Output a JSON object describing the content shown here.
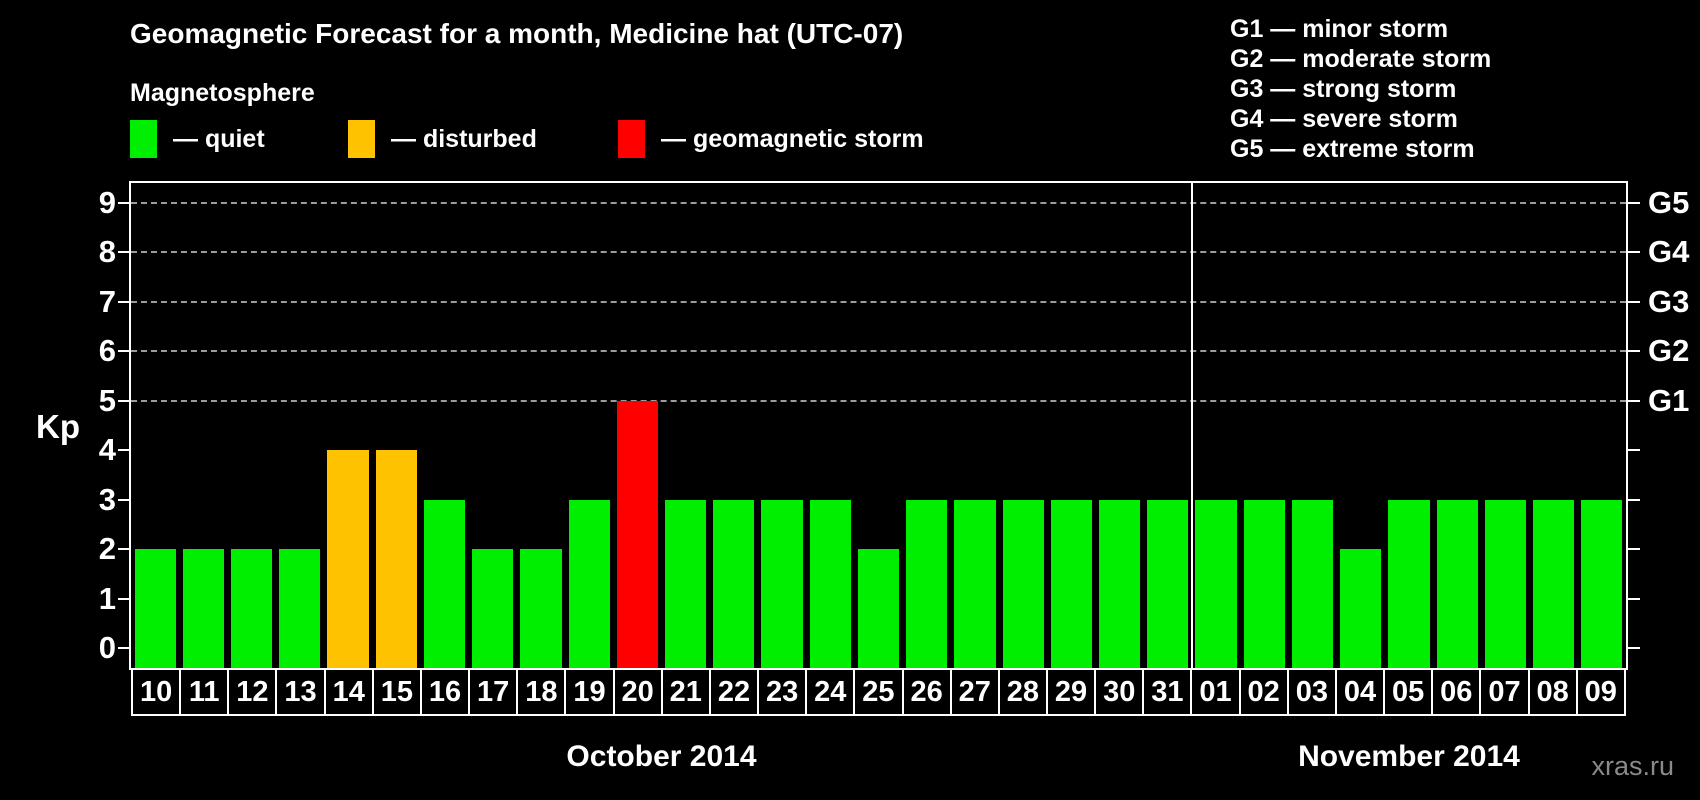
{
  "title": "Geomagnetic Forecast for a month, Medicine hat (UTC-07)",
  "subtitle": "Magnetosphere",
  "legend": {
    "quiet": {
      "label": "— quiet",
      "color": "#00ee00"
    },
    "disturbed": {
      "label": "— disturbed",
      "color": "#ffc200"
    },
    "storm": {
      "label": "— geomagnetic storm",
      "color": "#ff0000"
    }
  },
  "g_legend": {
    "lines": [
      "G1 — minor storm",
      "G2 — moderate storm",
      "G3 — strong storm",
      "G4 — severe storm",
      "G5 — extreme storm"
    ]
  },
  "axis": {
    "kp_label": "Kp",
    "left_ticks": [
      9,
      8,
      7,
      6,
      5,
      4,
      3,
      2,
      1,
      0
    ],
    "right_labels": [
      {
        "kp": 9,
        "label": "G5"
      },
      {
        "kp": 8,
        "label": "G4"
      },
      {
        "kp": 7,
        "label": "G3"
      },
      {
        "kp": 6,
        "label": "G2"
      },
      {
        "kp": 5,
        "label": "G1"
      }
    ]
  },
  "months": [
    {
      "label": "October 2014",
      "days": 22
    },
    {
      "label": "November 2014",
      "days": 9
    }
  ],
  "watermark": "xras.ru",
  "chart_data": {
    "type": "bar",
    "title": "Geomagnetic Forecast for a month, Medicine hat (UTC-07)",
    "xlabel": "",
    "ylabel": "Kp",
    "ylim": [
      0,
      9
    ],
    "grid": "dashed horizontal lines at Kp 5-9 (G1-G5 levels)",
    "legend_position": "top",
    "categories": [
      "10",
      "11",
      "12",
      "13",
      "14",
      "15",
      "16",
      "17",
      "18",
      "19",
      "20",
      "21",
      "22",
      "23",
      "24",
      "25",
      "26",
      "27",
      "28",
      "29",
      "30",
      "31",
      "01",
      "02",
      "03",
      "04",
      "05",
      "06",
      "07",
      "08",
      "09"
    ],
    "values": [
      2,
      2,
      2,
      2,
      4,
      4,
      3,
      2,
      2,
      3,
      5,
      3,
      3,
      3,
      3,
      2,
      3,
      3,
      3,
      3,
      3,
      3,
      3,
      3,
      3,
      2,
      3,
      3,
      3,
      3,
      3
    ],
    "states": [
      "quiet",
      "quiet",
      "quiet",
      "quiet",
      "disturbed",
      "disturbed",
      "quiet",
      "quiet",
      "quiet",
      "quiet",
      "storm",
      "quiet",
      "quiet",
      "quiet",
      "quiet",
      "quiet",
      "quiet",
      "quiet",
      "quiet",
      "quiet",
      "quiet",
      "quiet",
      "quiet",
      "quiet",
      "quiet",
      "quiet",
      "quiet",
      "quiet",
      "quiet",
      "quiet",
      "quiet"
    ],
    "colors": {
      "quiet": "#00ee00",
      "disturbed": "#ffc200",
      "storm": "#ff0000"
    }
  }
}
